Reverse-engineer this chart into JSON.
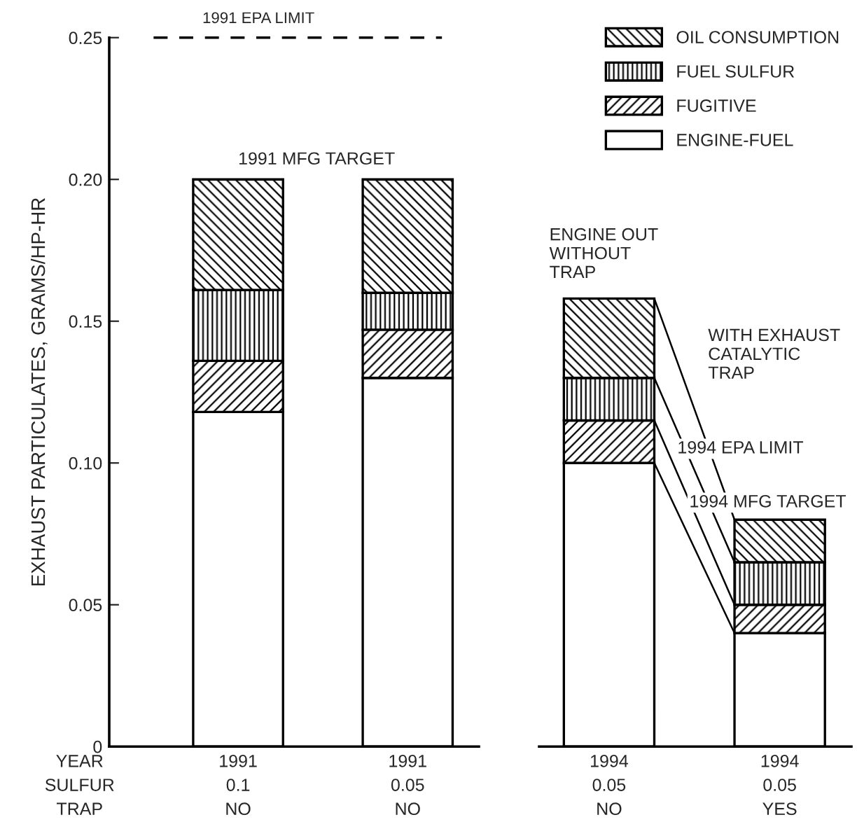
{
  "chart_data": [
    {
      "type": "bar",
      "stacked": true,
      "categories": [
        "1991\n0.1\nNO",
        "1991\n0.05\nNO"
      ],
      "ylabel": "EXHAUST PARTICULATES, GRAMS/HP-HR",
      "ylim": [
        0,
        0.25
      ],
      "yticks": [
        0,
        {
          "value": 0.05,
          "label": "0.05"
        },
        {
          "value": 0.1,
          "label": "0.10"
        },
        {
          "value": 0.15,
          "label": "0.15"
        },
        {
          "value": 0.2,
          "label": "0.20"
        },
        0.25
      ],
      "series": [
        {
          "color": "#ffffff",
          "values": [
            0.118,
            0.13
          ]
        },
        {
          "color": "#000000",
          "values": [
            0.018,
            0.017
          ]
        },
        {
          "color": "#000000",
          "values": [
            0.025,
            0.013
          ]
        },
        {
          "color": "#000000",
          "values": [
            0.039,
            0.04
          ]
        }
      ],
      "ref_lines": [
        {
          "axis": "y",
          "value": 0.25,
          "label": "1991 EPA LIMIT",
          "line_style": "dashed",
          "color": "#000000"
        }
      ],
      "annotations": [
        "YEAR\nSULFUR\nTRAP",
        "1991 MFG TARGET"
      ]
    },
    {
      "type": "bar",
      "stacked": true,
      "categories": [
        "1994\n0.05\nNO",
        "1994\n0.05\nYES"
      ],
      "ylim": [
        0,
        0.25
      ],
      "tick_labels": "x",
      "legend": "top right",
      "series": [
        {
          "name": "ENGINE-FUEL",
          "color": "#ffffff",
          "values": [
            0.1,
            0.04
          ]
        },
        {
          "name": "FUGITIVE",
          "color": "#000000",
          "values": [
            0.015,
            0.01
          ]
        },
        {
          "name": "FUEL SULFUR",
          "color": "#000000",
          "values": [
            0.015,
            0.015
          ]
        },
        {
          "name": "OIL CONSUMPTION",
          "color": "#000000",
          "values": [
            0.028,
            0.015
          ]
        }
      ],
      "annotations": [
        "ENGINE OUT\nWITHOUT\nTRAP",
        "WITH EXHAUST\nCATALYTIC\nTRAP",
        "1994 EPA LIMIT",
        "1994 MFG TARGET"
      ]
    }
  ]
}
